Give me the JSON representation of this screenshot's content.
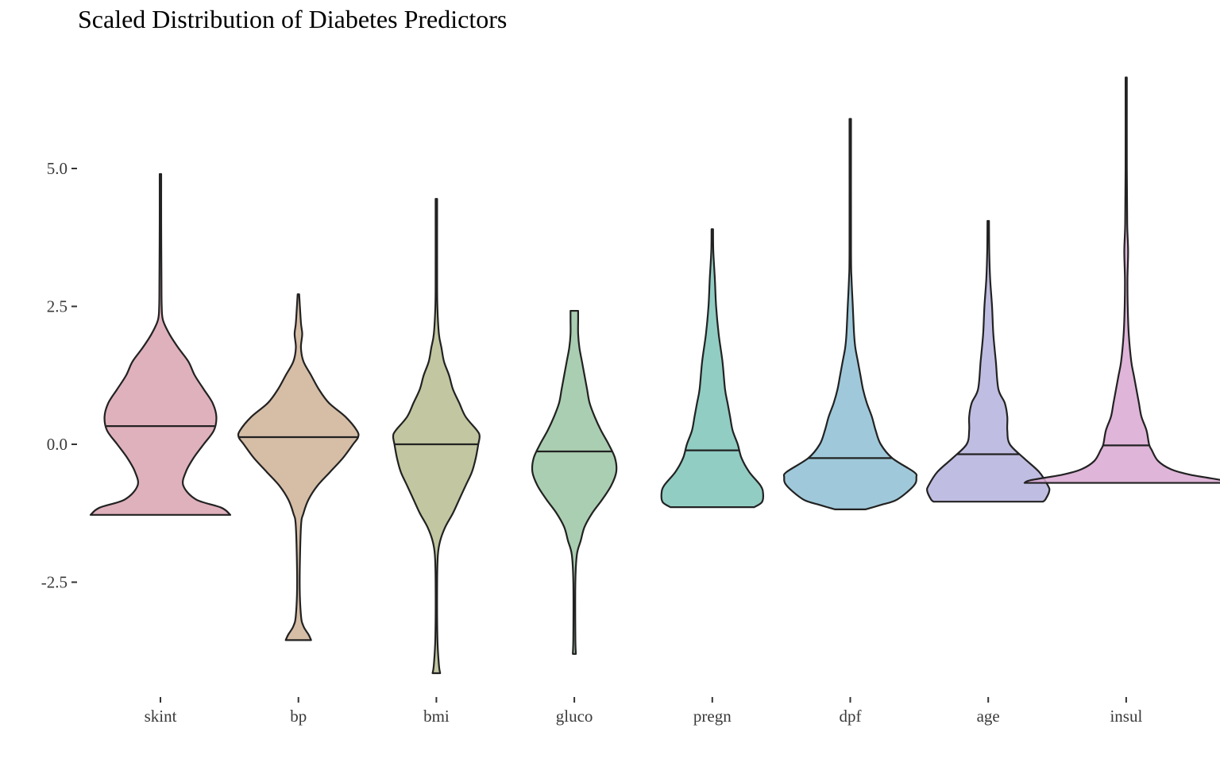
{
  "chart_data": {
    "type": "violin",
    "title": "Scaled Distribution of Diabetes Predictors",
    "xlabel": "",
    "ylabel": "",
    "ylim": [
      -4.75,
      7.0
    ],
    "yticks": [
      5.0,
      2.5,
      0.0,
      -2.5
    ],
    "ytick_labels": [
      "5.0",
      "2.5",
      "0.0",
      "-2.5"
    ],
    "grid": false,
    "legend": "none",
    "categories": [
      "skint",
      "bp",
      "bmi",
      "gluco",
      "pregn",
      "dpf",
      "age",
      "insul"
    ],
    "series": [
      {
        "category": "skint",
        "color": "#d9a3b1",
        "median": 0.33,
        "profile": [
          [
            -1.28,
            0.55
          ],
          [
            -1.15,
            0.48
          ],
          [
            -1.0,
            0.28
          ],
          [
            -0.75,
            0.18
          ],
          [
            -0.5,
            0.2
          ],
          [
            -0.25,
            0.26
          ],
          [
            0.0,
            0.34
          ],
          [
            0.25,
            0.42
          ],
          [
            0.5,
            0.44
          ],
          [
            0.75,
            0.41
          ],
          [
            1.0,
            0.34
          ],
          [
            1.25,
            0.27
          ],
          [
            1.5,
            0.22
          ],
          [
            1.75,
            0.14
          ],
          [
            2.0,
            0.07
          ],
          [
            2.25,
            0.02
          ],
          [
            2.5,
            0.01
          ],
          [
            3.0,
            0.008
          ],
          [
            4.0,
            0.006
          ],
          [
            4.9,
            0.006
          ]
        ]
      },
      {
        "category": "bp",
        "color": "#cfb297",
        "median": 0.13,
        "profile": [
          [
            -3.55,
            0.1
          ],
          [
            -3.45,
            0.08
          ],
          [
            -3.3,
            0.04
          ],
          [
            -3.1,
            0.02
          ],
          [
            -2.5,
            0.01
          ],
          [
            -1.5,
            0.02
          ],
          [
            -1.25,
            0.04
          ],
          [
            -1.0,
            0.08
          ],
          [
            -0.75,
            0.15
          ],
          [
            -0.5,
            0.25
          ],
          [
            -0.25,
            0.35
          ],
          [
            0.0,
            0.43
          ],
          [
            0.13,
            0.47
          ],
          [
            0.25,
            0.46
          ],
          [
            0.5,
            0.37
          ],
          [
            0.75,
            0.24
          ],
          [
            1.0,
            0.16
          ],
          [
            1.25,
            0.1
          ],
          [
            1.5,
            0.04
          ],
          [
            1.75,
            0.02
          ],
          [
            2.0,
            0.03
          ],
          [
            2.2,
            0.02
          ],
          [
            2.72,
            0.006
          ]
        ]
      },
      {
        "category": "bmi",
        "color": "#b7bd90",
        "median": 0.0,
        "profile": [
          [
            -4.15,
            0.03
          ],
          [
            -4.0,
            0.02
          ],
          [
            -3.5,
            0.008
          ],
          [
            -2.5,
            0.006
          ],
          [
            -2.0,
            0.012
          ],
          [
            -1.75,
            0.03
          ],
          [
            -1.5,
            0.07
          ],
          [
            -1.25,
            0.13
          ],
          [
            -1.0,
            0.18
          ],
          [
            -0.75,
            0.23
          ],
          [
            -0.5,
            0.28
          ],
          [
            -0.25,
            0.31
          ],
          [
            0.0,
            0.33
          ],
          [
            0.15,
            0.34
          ],
          [
            0.25,
            0.32
          ],
          [
            0.5,
            0.23
          ],
          [
            0.75,
            0.18
          ],
          [
            1.0,
            0.13
          ],
          [
            1.25,
            0.1
          ],
          [
            1.5,
            0.06
          ],
          [
            1.75,
            0.04
          ],
          [
            2.0,
            0.02
          ],
          [
            2.5,
            0.008
          ],
          [
            3.0,
            0.006
          ],
          [
            4.45,
            0.006
          ]
        ]
      },
      {
        "category": "gluco",
        "color": "#9bc5a3",
        "median": -0.13,
        "profile": [
          [
            -3.8,
            0.012
          ],
          [
            -3.5,
            0.008
          ],
          [
            -2.5,
            0.008
          ],
          [
            -2.0,
            0.02
          ],
          [
            -1.75,
            0.05
          ],
          [
            -1.5,
            0.08
          ],
          [
            -1.25,
            0.14
          ],
          [
            -1.0,
            0.22
          ],
          [
            -0.75,
            0.29
          ],
          [
            -0.5,
            0.33
          ],
          [
            -0.25,
            0.32
          ],
          [
            0.0,
            0.27
          ],
          [
            0.25,
            0.21
          ],
          [
            0.5,
            0.16
          ],
          [
            0.75,
            0.12
          ],
          [
            1.0,
            0.1
          ],
          [
            1.25,
            0.08
          ],
          [
            1.5,
            0.06
          ],
          [
            1.75,
            0.04
          ],
          [
            2.0,
            0.03
          ],
          [
            2.25,
            0.03
          ],
          [
            2.42,
            0.03
          ]
        ]
      },
      {
        "category": "pregn",
        "color": "#7ec4b8",
        "median": -0.11,
        "profile": [
          [
            -1.14,
            0.33
          ],
          [
            -1.05,
            0.39
          ],
          [
            -0.9,
            0.4
          ],
          [
            -0.75,
            0.38
          ],
          [
            -0.5,
            0.29
          ],
          [
            -0.25,
            0.23
          ],
          [
            0.0,
            0.2
          ],
          [
            0.25,
            0.16
          ],
          [
            0.5,
            0.14
          ],
          [
            0.75,
            0.12
          ],
          [
            1.0,
            0.1
          ],
          [
            1.5,
            0.08
          ],
          [
            2.0,
            0.05
          ],
          [
            2.5,
            0.03
          ],
          [
            3.0,
            0.02
          ],
          [
            3.5,
            0.008
          ],
          [
            3.9,
            0.006
          ]
        ]
      },
      {
        "category": "dpf",
        "color": "#8ebfd4",
        "median": -0.25,
        "profile": [
          [
            -1.18,
            0.12
          ],
          [
            -1.1,
            0.24
          ],
          [
            -1.0,
            0.37
          ],
          [
            -0.75,
            0.5
          ],
          [
            -0.6,
            0.52
          ],
          [
            -0.5,
            0.5
          ],
          [
            -0.25,
            0.33
          ],
          [
            0.0,
            0.24
          ],
          [
            0.25,
            0.2
          ],
          [
            0.5,
            0.17
          ],
          [
            0.75,
            0.13
          ],
          [
            1.0,
            0.1
          ],
          [
            1.25,
            0.08
          ],
          [
            1.5,
            0.06
          ],
          [
            1.75,
            0.04
          ],
          [
            2.0,
            0.03
          ],
          [
            2.5,
            0.02
          ],
          [
            3.0,
            0.01
          ],
          [
            3.5,
            0.006
          ],
          [
            5.9,
            0.006
          ]
        ]
      },
      {
        "category": "age",
        "color": "#b5b1dd",
        "median": -0.18,
        "profile": [
          [
            -1.04,
            0.43
          ],
          [
            -1.0,
            0.45
          ],
          [
            -0.85,
            0.48
          ],
          [
            -0.75,
            0.47
          ],
          [
            -0.5,
            0.4
          ],
          [
            -0.25,
            0.28
          ],
          [
            0.0,
            0.17
          ],
          [
            0.25,
            0.15
          ],
          [
            0.5,
            0.15
          ],
          [
            0.75,
            0.13
          ],
          [
            1.0,
            0.08
          ],
          [
            1.5,
            0.06
          ],
          [
            2.0,
            0.04
          ],
          [
            2.5,
            0.03
          ],
          [
            3.0,
            0.015
          ],
          [
            3.5,
            0.008
          ],
          [
            4.05,
            0.006
          ]
        ]
      },
      {
        "category": "insul",
        "color": "#d9a8d2",
        "median": -0.02,
        "profile": [
          [
            -0.7,
            0.8
          ],
          [
            -0.65,
            0.75
          ],
          [
            -0.55,
            0.5
          ],
          [
            -0.45,
            0.35
          ],
          [
            -0.3,
            0.25
          ],
          [
            -0.1,
            0.2
          ],
          [
            0.0,
            0.18
          ],
          [
            0.25,
            0.16
          ],
          [
            0.5,
            0.12
          ],
          [
            0.75,
            0.1
          ],
          [
            1.0,
            0.08
          ],
          [
            1.25,
            0.06
          ],
          [
            1.5,
            0.04
          ],
          [
            2.0,
            0.02
          ],
          [
            2.5,
            0.012
          ],
          [
            3.0,
            0.01
          ],
          [
            3.5,
            0.015
          ],
          [
            4.0,
            0.008
          ],
          [
            5.0,
            0.005
          ],
          [
            6.65,
            0.005
          ]
        ]
      }
    ]
  }
}
